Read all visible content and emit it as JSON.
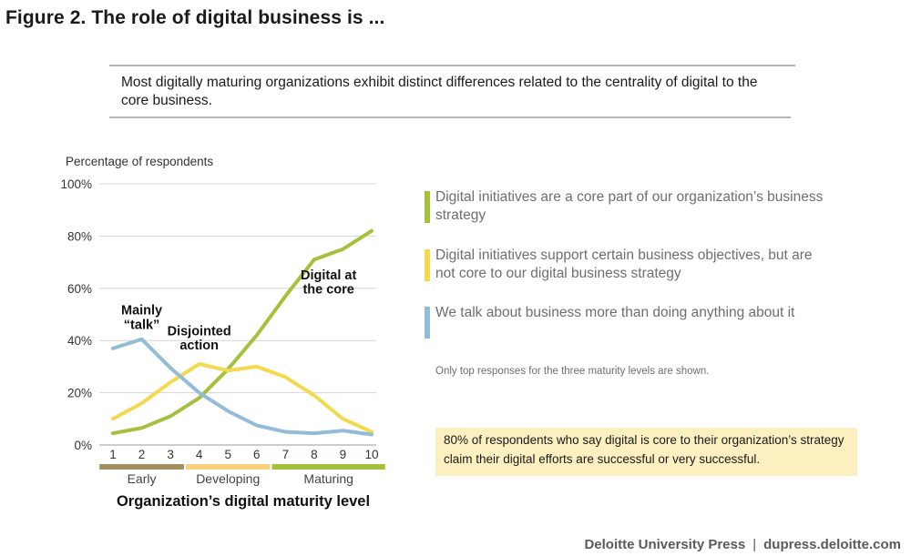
{
  "figure_title": "Figure 2. The role of digital business is ...",
  "intro_text": "Most digitally maturing organizations exhibit distinct differences related to the centrality of digital to the core business.",
  "legend": [
    {
      "label": "Digital initiatives are a core part of our organization’s business strategy",
      "color": "#a3c13b"
    },
    {
      "label": "Digital initiatives support certain business objectives, but are not core to our digital business strategy",
      "color": "#f2d94e"
    },
    {
      "label": "We talk about business more than doing anything about it",
      "color": "#93bcd8"
    }
  ],
  "footnote": "Only top responses for the three maturity levels are shown.",
  "callout": "80% of respondents who say digital is core to their organization’s strategy claim their digital efforts are successful or very successful.",
  "credit": {
    "publisher": "Deloitte University Press",
    "separator": "|",
    "url": "dupress.deloitte.com"
  },
  "chart_data": {
    "type": "line",
    "title": "",
    "ylabel": "Percentage of respondents",
    "xlabel": "Organization’s digital maturity level",
    "x": [
      1,
      2,
      3,
      4,
      5,
      6,
      7,
      8,
      9,
      10
    ],
    "x_tick_labels": [
      "1",
      "2",
      "3",
      "4",
      "5",
      "6",
      "7",
      "8",
      "9",
      "10"
    ],
    "ylim": [
      0,
      100
    ],
    "y_ticks": [
      0,
      20,
      40,
      60,
      80,
      100
    ],
    "y_tick_labels": [
      "0%",
      "20%",
      "40%",
      "60%",
      "80%",
      "100%"
    ],
    "grid": true,
    "series": [
      {
        "name": "Digital initiatives are a core part of our organization’s business strategy",
        "key": "core",
        "color": "#a3c13b",
        "values": [
          4.5,
          6.5,
          11,
          18,
          29,
          42,
          57,
          71,
          75,
          82
        ]
      },
      {
        "name": "Digital initiatives support certain business objectives, but are not core to our digital business strategy",
        "key": "support",
        "color": "#f2d94e",
        "values": [
          10,
          16,
          24,
          31,
          28.5,
          30,
          26,
          19,
          10,
          5
        ]
      },
      {
        "name": "We talk about business more than doing anything about it",
        "key": "talk",
        "color": "#93bcd8",
        "values": [
          37,
          40.5,
          29.5,
          20,
          13,
          7.5,
          5,
          4.5,
          5.5,
          4
        ]
      }
    ],
    "annotations": [
      {
        "text": "Mainly",
        "x": 2,
        "y": 50
      },
      {
        "text": "“talk”",
        "x": 2,
        "y": 44.5
      },
      {
        "text": "Disjointed",
        "x": 4,
        "y": 42
      },
      {
        "text": "action",
        "x": 4,
        "y": 36.5
      },
      {
        "text": "Digital at",
        "x": 8.5,
        "y": 63.5
      },
      {
        "text": "the core",
        "x": 8.5,
        "y": 58
      }
    ],
    "maturity_groups": [
      {
        "label": "Early",
        "from": 1,
        "to": 3,
        "color": "#a38f5e"
      },
      {
        "label": "Developing",
        "from": 4,
        "to": 6,
        "color": "#fcd07b"
      },
      {
        "label": "Maturing",
        "from": 7,
        "to": 10,
        "color": "#a3c13b"
      }
    ]
  }
}
